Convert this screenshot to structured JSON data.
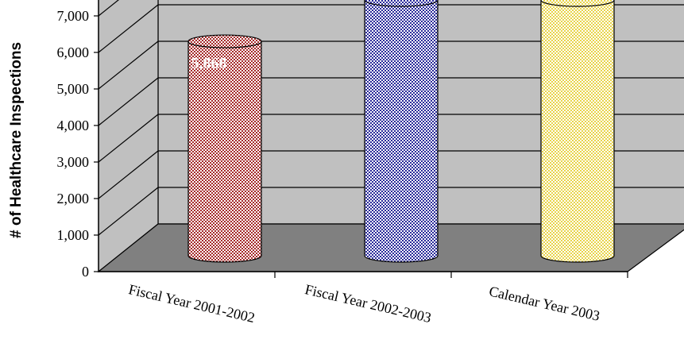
{
  "chart_data": {
    "type": "bar",
    "style": "3d-cylinder",
    "ylabel": "# of Healthcare Inspections",
    "ylim": [
      0,
      7000
    ],
    "yticks": [
      "0",
      "1,000",
      "2,000",
      "3,000",
      "4,000",
      "5,000",
      "6,000",
      "7,000"
    ],
    "categories": [
      "Fiscal Year 2001-2002",
      "Fiscal Year 2002-2003",
      "Calendar Year 2003"
    ],
    "values": [
      5868,
      7000,
      7000
    ],
    "data_labels": [
      "5,868",
      "",
      ""
    ],
    "grid": true,
    "colors": {
      "bar_1": "#a52a2a",
      "bar_2": "#2a2a9a",
      "bar_3": "#e8d44a",
      "back_wall": "#c0c0c0",
      "floor": "#808080"
    }
  }
}
